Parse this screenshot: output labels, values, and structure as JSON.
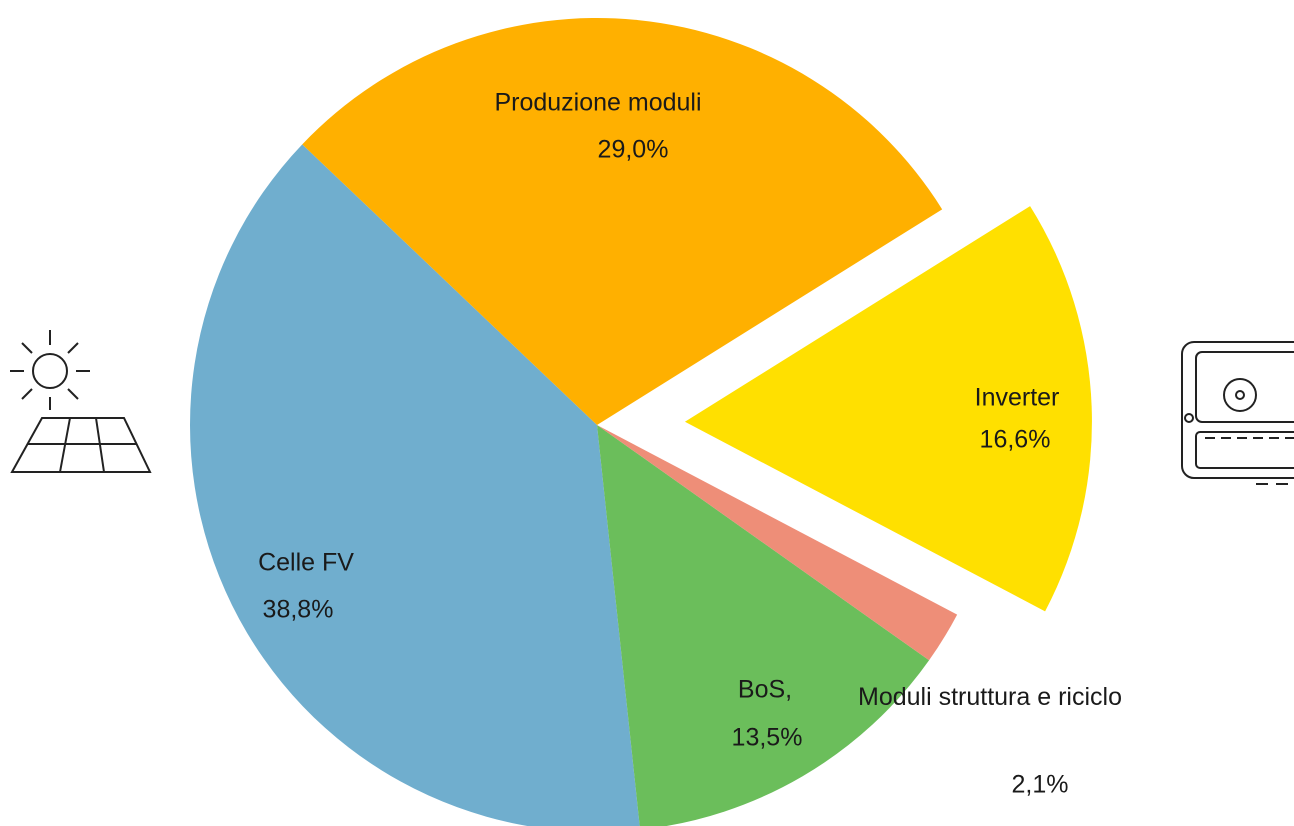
{
  "chart_data": {
    "type": "pie",
    "categories": [
      "Produzione moduli",
      "Inverter",
      "Moduli struttura e riciclo",
      "BoS,",
      "Celle FV"
    ],
    "values": [
      29.0,
      16.6,
      2.1,
      13.5,
      38.8
    ],
    "value_labels": [
      "29,0%",
      "16,6%",
      "2,1%",
      "13,5%",
      "38,8%"
    ],
    "colors": [
      "#FFB000",
      "#FFE000",
      "#EE8E78",
      "#6BBE5B",
      "#70AECE"
    ]
  }
}
